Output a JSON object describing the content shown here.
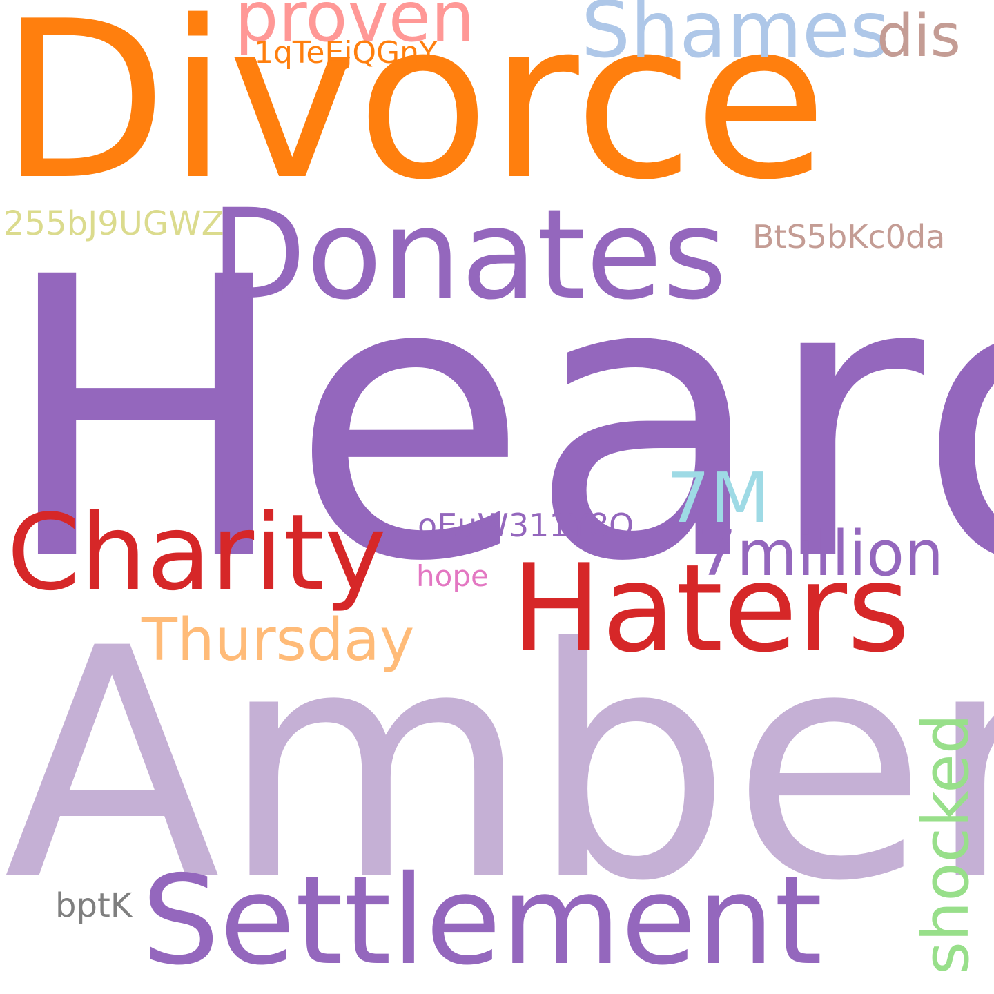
{
  "background_color": "#ffffff",
  "words": [
    {
      "id": "divorce",
      "text": "Divorce",
      "color": "#ff7f0e"
    },
    {
      "id": "heard",
      "text": "Heard",
      "color": "#9467bd"
    },
    {
      "id": "amber",
      "text": "Amber",
      "color": "#c5b0d5"
    },
    {
      "id": "donates",
      "text": "Donates",
      "color": "#9467bd"
    },
    {
      "id": "settlement",
      "text": "Settlement",
      "color": "#9467bd"
    },
    {
      "id": "charity",
      "text": "Charity",
      "color": "#d62728"
    },
    {
      "id": "haters",
      "text": "Haters",
      "color": "#d62728"
    },
    {
      "id": "shames",
      "text": "Shames",
      "color": "#aec7e8"
    },
    {
      "id": "proven",
      "text": "proven",
      "color": "#ff9896"
    },
    {
      "id": "dis",
      "text": "dis",
      "color": "#c49c94"
    },
    {
      "id": "1qteejqgny",
      "text": "1qTeEjQGnY",
      "color": "#ff7f0e"
    },
    {
      "id": "255bj9ugwz",
      "text": "255bJ9UGWZ",
      "color": "#dbdb8d"
    },
    {
      "id": "bts5bkc0da",
      "text": "BtS5bKc0da",
      "color": "#c49c94"
    },
    {
      "id": "7m",
      "text": "7M",
      "color": "#9edae5"
    },
    {
      "id": "oeuw311y8q",
      "text": "oEuW311Y8Q",
      "color": "#9467bd"
    },
    {
      "id": "7million",
      "text": "7million",
      "color": "#9467bd"
    },
    {
      "id": "hope",
      "text": "hope",
      "color": "#e377c2"
    },
    {
      "id": "thursday",
      "text": "Thursday",
      "color": "#ffbb78"
    },
    {
      "id": "shocked",
      "text": "shocked",
      "color": "#98df8a"
    },
    {
      "id": "bptk",
      "text": "bptK",
      "color": "#7f7f7f"
    }
  ]
}
